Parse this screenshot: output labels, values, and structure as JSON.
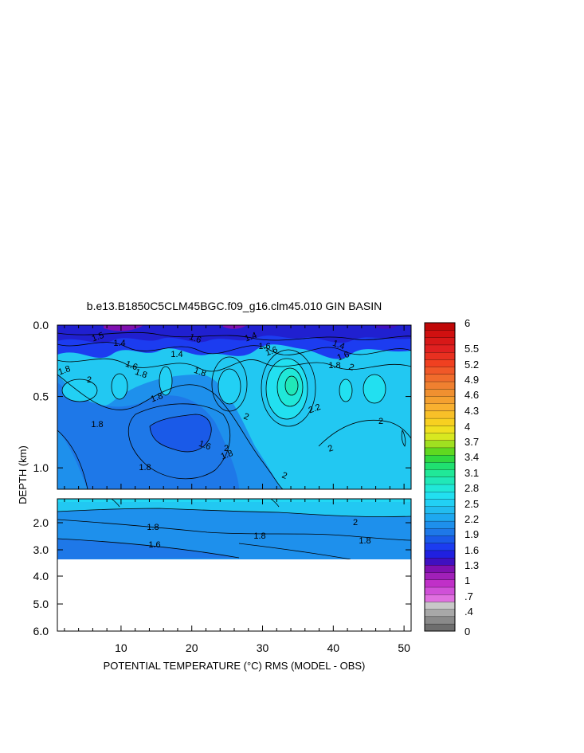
{
  "chart_data": {
    "type": "heatmap",
    "title": "b.e13.B1850C5CLM45BGC.f09_g16.clm45.010 GIN BASIN",
    "xlabel": "POTENTIAL TEMPERATURE (°C) RMS (MODEL - OBS)",
    "ylabel": "DEPTH (km)",
    "xlim": [
      1,
      51
    ],
    "x_ticks": [
      "10",
      "20",
      "30",
      "40",
      "50"
    ],
    "upper_panel": {
      "ylim": [
        0.0,
        1.15
      ],
      "y_ticks": [
        "0.0",
        "0.5",
        "1.0"
      ]
    },
    "lower_panel": {
      "ylim": [
        1.2,
        6.0
      ],
      "y_ticks": [
        "2.0",
        "3.0",
        "4.0",
        "5.0",
        "6.0"
      ],
      "data_bottom_depth": 3.35
    },
    "contour_labels_upper": [
      "1.5",
      "1.4",
      "1.6",
      "1.8",
      "1.4",
      "1.6",
      "1.4",
      "1.6",
      "1.8",
      "1.6",
      "2",
      "1.8",
      "1.8",
      "1.8",
      "2",
      "2.2",
      "2",
      "1.6",
      "1.8",
      "1.8",
      "2",
      "2",
      "2",
      "1.4",
      "1.6",
      "1.8",
      "2"
    ],
    "contour_labels_lower": [
      "1.8",
      "1.8",
      "1.6",
      "2",
      "1.8"
    ],
    "colorbar": {
      "labels": [
        "6",
        "5.5",
        "5.2",
        "4.9",
        "4.6",
        "4.3",
        "4",
        "3.7",
        "3.4",
        "3.1",
        "2.8",
        "2.5",
        "2.2",
        "1.9",
        "1.6",
        "1.3",
        "1",
        ".7",
        ".4",
        "0"
      ],
      "colors_bottom_to_top": [
        "#6e6e6e",
        "#8a8a8a",
        "#a8a8a8",
        "#c8c8c8",
        "#e070e0",
        "#d050d8",
        "#c030c8",
        "#a020b8",
        "#8010b0",
        "#4010c0",
        "#2020e0",
        "#1c3cf0",
        "#1a5ae8",
        "#1e78e8",
        "#1e90ec",
        "#1ea8f0",
        "#22bcf0",
        "#22d0f4",
        "#22e0f0",
        "#20e8d8",
        "#20e8b8",
        "#20e898",
        "#20e070",
        "#30d840",
        "#60d820",
        "#a0e020",
        "#d8e820",
        "#f0e020",
        "#f8d020",
        "#f8c028",
        "#f8b030",
        "#f4a030",
        "#f09030",
        "#f08030",
        "#f06c2c",
        "#f05828",
        "#f04020",
        "#e83020",
        "#e02020",
        "#d81818",
        "#d01010",
        "#c00808"
      ]
    },
    "colors": {
      "deep_blue": "#2020d0",
      "mid_blue": "#1e78e8",
      "light_blue": "#22a8f0",
      "cyan": "#22d8f4",
      "teal": "#20e8c0"
    }
  }
}
